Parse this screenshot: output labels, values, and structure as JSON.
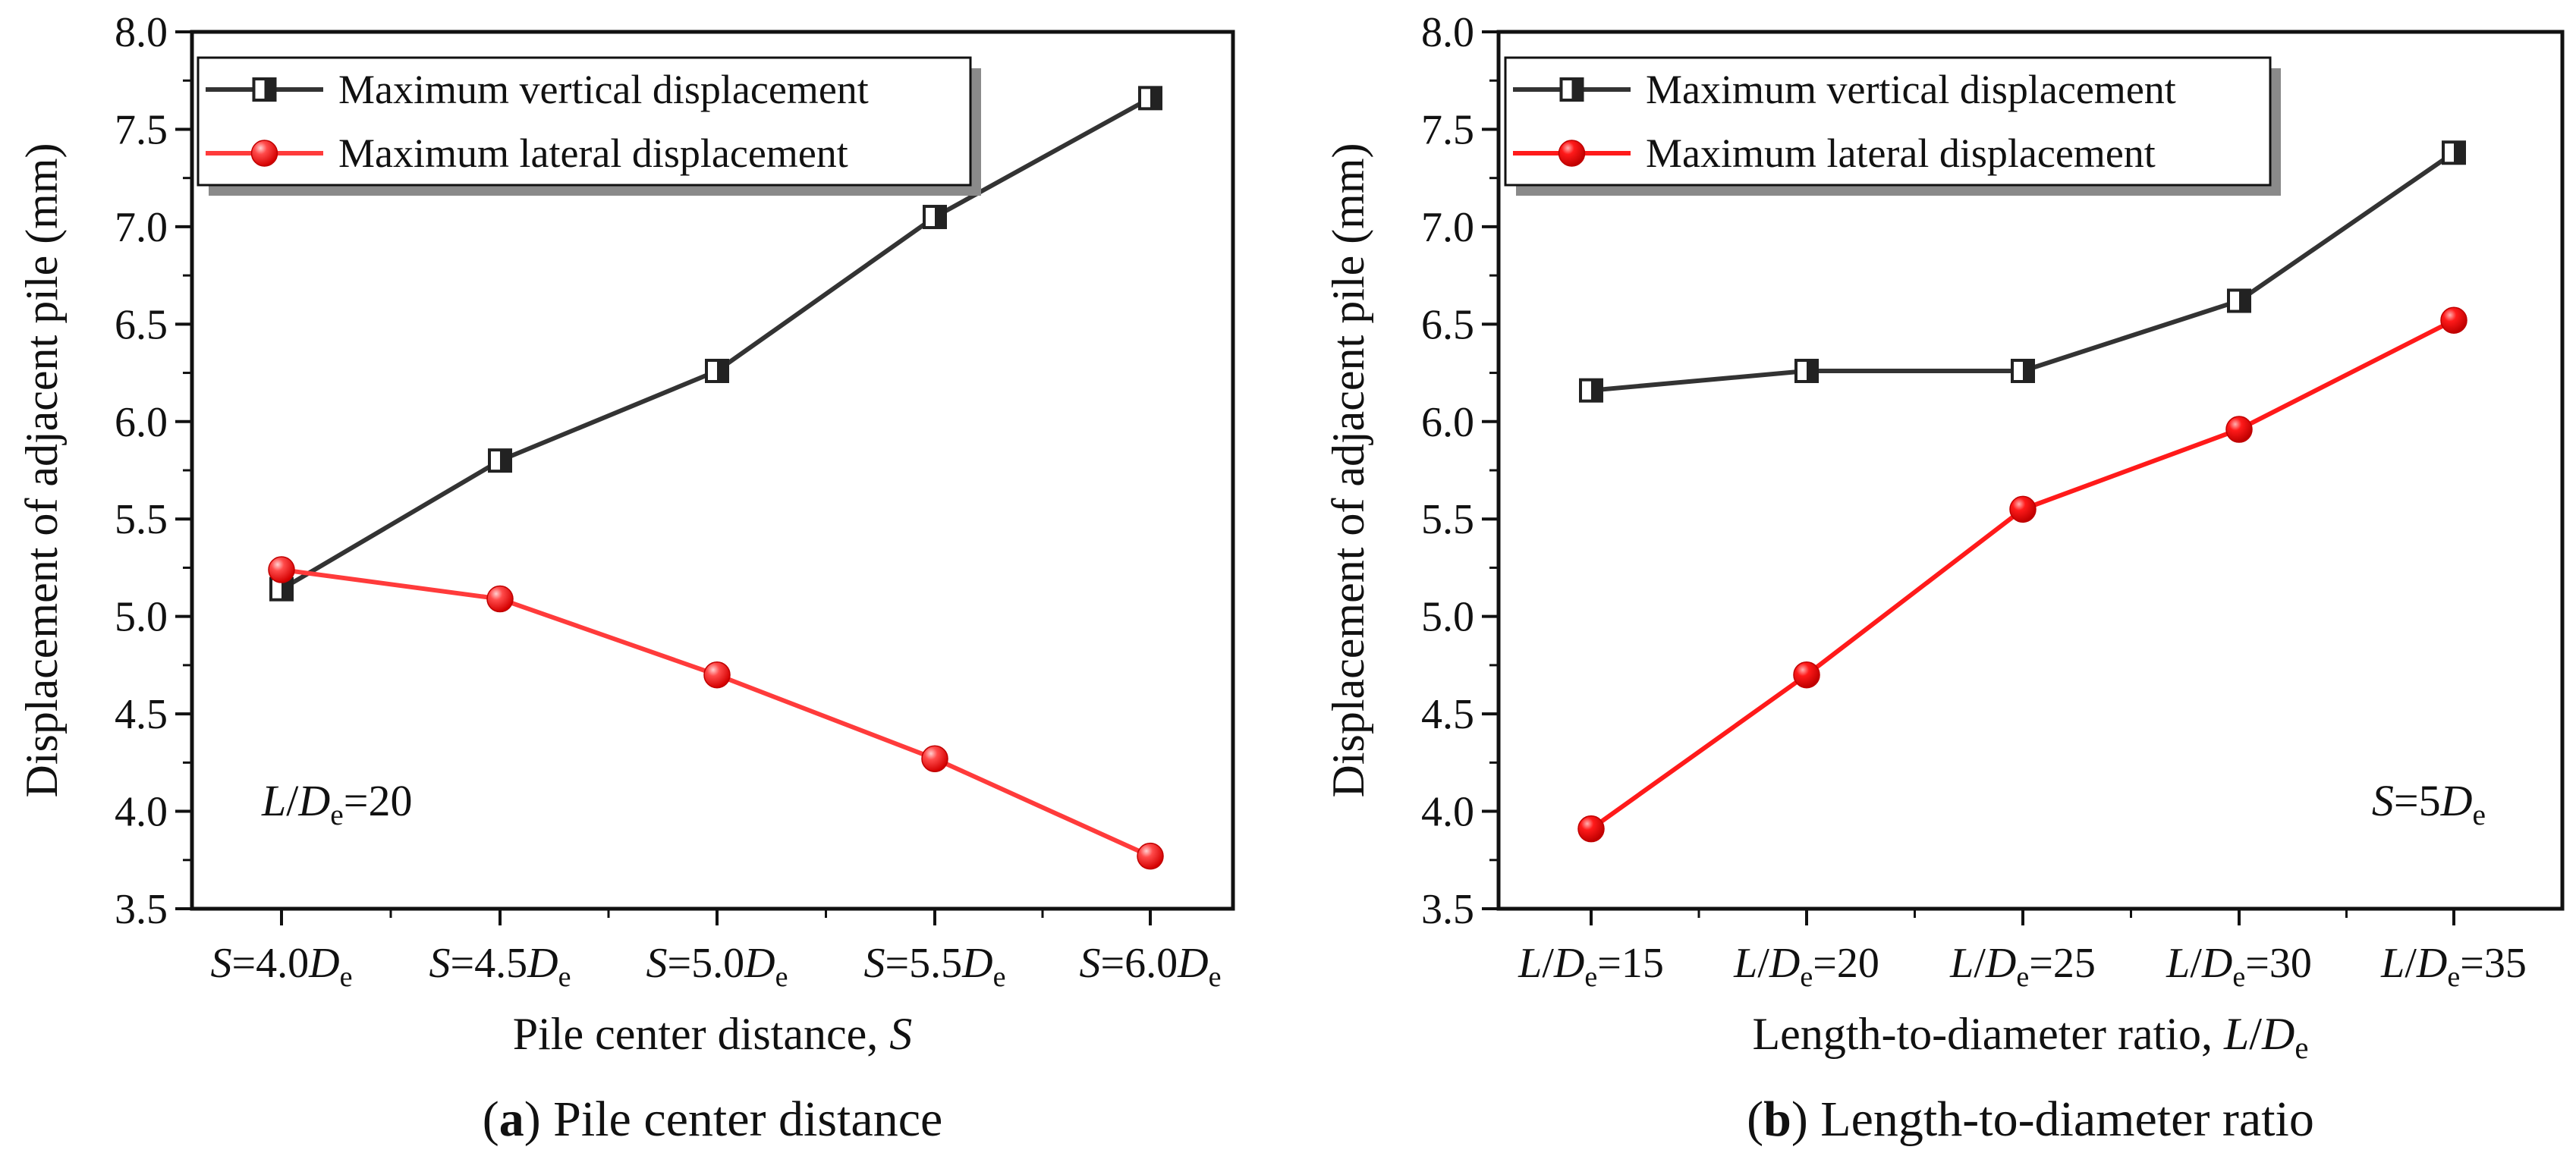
{
  "chart_data": [
    {
      "type": "line",
      "panel": "a",
      "caption": {
        "letter": "a",
        "text": " Pile center distance"
      },
      "xlabel": {
        "text": "Pile center distance, ",
        "italic": "S"
      },
      "ylabel": "Displacement of adjacent pile (mm)",
      "ylim": [
        3.5,
        8.0
      ],
      "yticks": [
        "3.5",
        "4.0",
        "4.5",
        "5.0",
        "5.5",
        "6.0",
        "6.5",
        "7.0",
        "7.5",
        "8.0"
      ],
      "categories": [
        {
          "pre": "S",
          "mid": "=4.0",
          "var": "D",
          "sub": "e",
          "post": ""
        },
        {
          "pre": "S",
          "mid": "=4.5",
          "var": "D",
          "sub": "e",
          "post": ""
        },
        {
          "pre": "S",
          "mid": "=5.0",
          "var": "D",
          "sub": "e",
          "post": ""
        },
        {
          "pre": "S",
          "mid": "=5.5",
          "var": "D",
          "sub": "e",
          "post": ""
        },
        {
          "pre": "S",
          "mid": "=6.0",
          "var": "D",
          "sub": "e",
          "post": ""
        }
      ],
      "series": [
        {
          "name": "Maximum vertical displacement",
          "color": "#333333",
          "marker": "half-square",
          "values": [
            5.14,
            5.8,
            6.26,
            7.05,
            7.66
          ]
        },
        {
          "name": "Maximum lateral displacement",
          "color": "#ff3b3b",
          "marker": "sphere",
          "values": [
            5.24,
            5.09,
            4.7,
            4.27,
            3.77
          ]
        }
      ],
      "annotation": {
        "pre": "L/",
        "var": "D",
        "sub": "e",
        "post": "=20",
        "position": "bottom-left"
      },
      "legend": "top-left"
    },
    {
      "type": "line",
      "panel": "b",
      "caption": {
        "letter": "b",
        "text": " Length-to-diameter ratio"
      },
      "xlabel": {
        "text": "Length-to-diameter ratio, ",
        "italic": "L/D",
        "sub": "e"
      },
      "ylabel": "Displacement of adjacent pile (mm)",
      "ylim": [
        3.5,
        8.0
      ],
      "yticks": [
        "3.5",
        "4.0",
        "4.5",
        "5.0",
        "5.5",
        "6.0",
        "6.5",
        "7.0",
        "7.5",
        "8.0"
      ],
      "categories": [
        {
          "pre": "L/",
          "mid": "",
          "var": "D",
          "sub": "e",
          "post": "=15"
        },
        {
          "pre": "L/",
          "mid": "",
          "var": "D",
          "sub": "e",
          "post": "=20"
        },
        {
          "pre": "L/",
          "mid": "",
          "var": "D",
          "sub": "e",
          "post": "=25"
        },
        {
          "pre": "L/",
          "mid": "",
          "var": "D",
          "sub": "e",
          "post": "=30"
        },
        {
          "pre": "L/",
          "mid": "",
          "var": "D",
          "sub": "e",
          "post": "=35"
        }
      ],
      "series": [
        {
          "name": "Maximum vertical displacement",
          "color": "#333333",
          "marker": "half-square",
          "values": [
            6.16,
            6.26,
            6.26,
            6.62,
            7.38
          ]
        },
        {
          "name": "Maximum lateral displacement",
          "color": "#ff1a1a",
          "marker": "sphere",
          "values": [
            3.91,
            4.7,
            5.55,
            5.96,
            6.52
          ]
        }
      ],
      "annotation": {
        "pre": "S",
        "mid": "=5",
        "var": "D",
        "sub": "e",
        "post": "",
        "position": "bottom-right"
      },
      "legend": "top-left"
    }
  ]
}
